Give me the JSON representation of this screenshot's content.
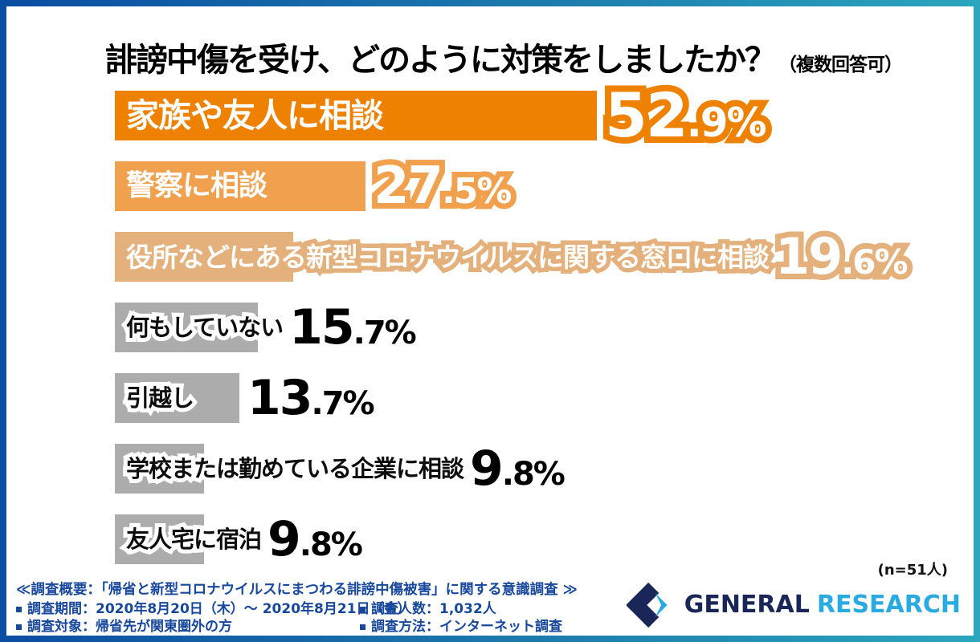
{
  "title": {
    "main": "誹謗中傷を受け、どのように対策をしましたか？",
    "note": "（複数回答可）"
  },
  "chart_data": {
    "type": "bar",
    "orientation": "horizontal",
    "title": "誹謗中傷を受け、どのように対策をしましたか？（複数回答可）",
    "unit": "%",
    "xlim": [
      0,
      55
    ],
    "sample_size_note": "(n=51人)",
    "categories": [
      "家族や友人に相談",
      "警察に相談",
      "役所などにある新型コロナウイルスに関する窓口に相談",
      "何もしていない",
      "引越し",
      "学校または勤めている企業に相談",
      "友人宅に宿泊"
    ],
    "values": [
      52.9,
      27.5,
      19.6,
      15.7,
      13.7,
      9.8,
      9.8
    ],
    "bars": [
      {
        "label": "家族や友人に相談",
        "value": "52.9",
        "color": "#EE8100",
        "style": "v1"
      },
      {
        "label": "警察に相談",
        "value": "27.5",
        "color": "#F1A14E",
        "style": "v2"
      },
      {
        "label": "役所などにある新型コロナウイルスに関する窓口に相談",
        "value": "19.6",
        "color": "#E4B17D",
        "style": "v3"
      },
      {
        "label": "何もしていない",
        "value": "15.7",
        "color": "#ACACAC",
        "style": "vg"
      },
      {
        "label": "引越し",
        "value": "13.7",
        "color": "#ACACAC",
        "style": "vg"
      },
      {
        "label": "学校または勤めている企業に相談",
        "value": "9.8",
        "color": "#ACACAC",
        "style": "vg"
      },
      {
        "label": "友人宅に宿泊",
        "value": "9.8",
        "color": "#ACACAC",
        "style": "vg"
      }
    ]
  },
  "footer": {
    "overview": "≪調査概要：「帰省と新型コロナウイルスにまつわる誹謗中傷被害」に関する意識調査 ≫",
    "items": [
      "調査期間：2020年8月20日（木）～ 2020年8月21日（金）",
      "調査人数：1,032人",
      "調査対象：帰省先が関東圏外の方",
      "調査方法：インターネット調査"
    ],
    "logo": {
      "part1": "GENERAL",
      "part2": "RESEARCH"
    }
  },
  "colors": {
    "frame_gradient_left": "#0B4DA2",
    "frame_gradient_right": "#2BA6BE",
    "bar_primary": "#EE8100",
    "bar_secondary": "#F1A14E",
    "bar_tertiary": "#E4B17D",
    "bar_gray": "#ACACAC",
    "footer_text": "#17489C",
    "logo_navy": "#1A2558",
    "logo_cyan": "#29ABE2"
  }
}
